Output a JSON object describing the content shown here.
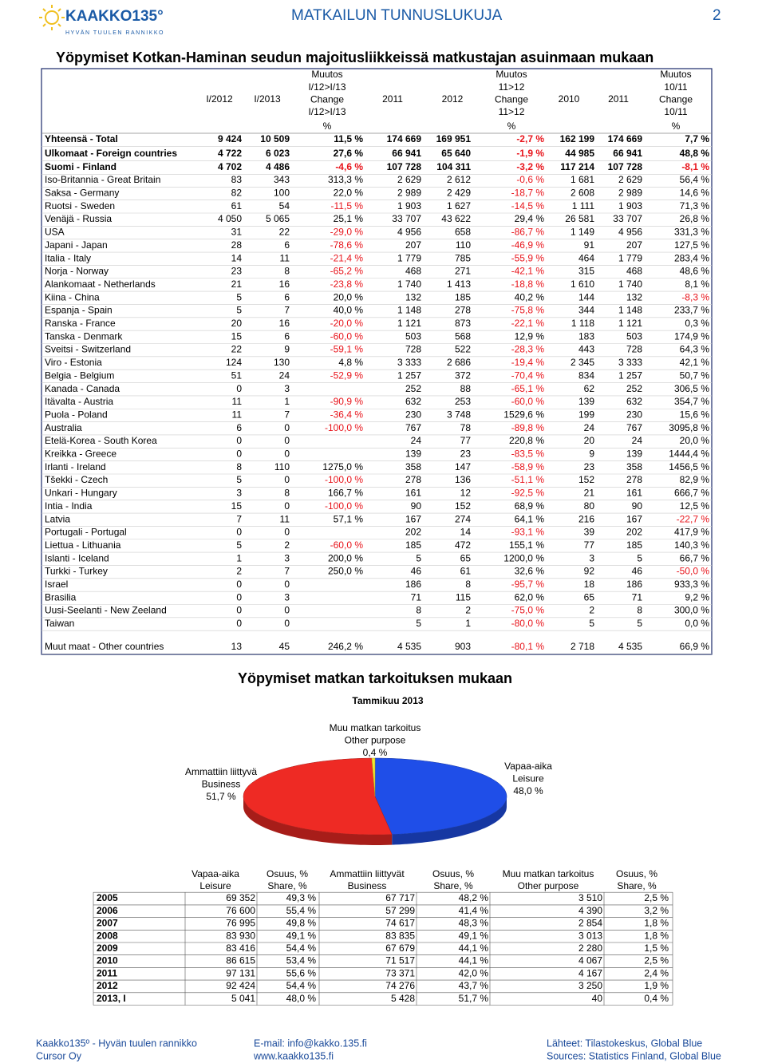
{
  "header": {
    "logo": "KAAKKO135°",
    "tagline": "HYVÄN TUULEN RANNIKKO",
    "title": "MATKAILUN TUNNUSLUKUJA",
    "page": "2"
  },
  "table": {
    "title": "Yöpymiset Kotkan-Haminan seudun majoitusliikkeissä matkustajan asuinmaan mukaan",
    "columns": [
      {
        "lines": [
          "I/2012"
        ]
      },
      {
        "lines": [
          "I/2013"
        ]
      },
      {
        "lines": [
          "Muutos",
          "I/12>I/13",
          "Change",
          "I/12>I/13"
        ],
        "unit": "%"
      },
      {
        "lines": [
          "2011"
        ]
      },
      {
        "lines": [
          "2012"
        ]
      },
      {
        "lines": [
          "Muutos",
          "11>12",
          "Change",
          "11>12"
        ],
        "unit": "%"
      },
      {
        "lines": [
          "2010"
        ]
      },
      {
        "lines": [
          "2011"
        ]
      },
      {
        "lines": [
          "Muutos",
          "10/11",
          "Change",
          "10/11"
        ],
        "unit": "%"
      }
    ],
    "rows": [
      {
        "name": "Yhteensä - Total",
        "bold": true,
        "cells": [
          "9 424",
          "10 509",
          "11,5 %",
          "174 669",
          "169 951",
          "-2,7 %",
          "162 199",
          "174 669",
          "7,7 %"
        ]
      },
      {
        "name": "Ulkomaat - Foreign countries",
        "bold": true,
        "cells": [
          "4 722",
          "6 023",
          "27,6 %",
          "66 941",
          "65 640",
          "-1,9 %",
          "44 985",
          "66 941",
          "48,8 %"
        ]
      },
      {
        "name": "Suomi - Finland",
        "bold": true,
        "cells": [
          "4 702",
          "4 486",
          "-4,6 %",
          "107 728",
          "104 311",
          "-3,2 %",
          "117 214",
          "107 728",
          "-8,1 %"
        ]
      },
      {
        "name": "Iso-Britannia - Great Britain",
        "cells": [
          "83",
          "343",
          "313,3 %",
          "2 629",
          "2 612",
          "-0,6 %",
          "1 681",
          "2 629",
          "56,4 %"
        ]
      },
      {
        "name": "Saksa - Germany",
        "cells": [
          "82",
          "100",
          "22,0 %",
          "2 989",
          "2 429",
          "-18,7 %",
          "2 608",
          "2 989",
          "14,6 %"
        ]
      },
      {
        "name": "Ruotsi - Sweden",
        "cells": [
          "61",
          "54",
          "-11,5 %",
          "1 903",
          "1 627",
          "-14,5 %",
          "1 111",
          "1 903",
          "71,3 %"
        ]
      },
      {
        "name": "Venäjä - Russia",
        "cells": [
          "4 050",
          "5 065",
          "25,1 %",
          "33 707",
          "43 622",
          "29,4 %",
          "26 581",
          "33 707",
          "26,8 %"
        ]
      },
      {
        "name": "USA",
        "cells": [
          "31",
          "22",
          "-29,0 %",
          "4 956",
          "658",
          "-86,7 %",
          "1 149",
          "4 956",
          "331,3 %"
        ]
      },
      {
        "name": "Japani - Japan",
        "cells": [
          "28",
          "6",
          "-78,6 %",
          "207",
          "110",
          "-46,9 %",
          "91",
          "207",
          "127,5 %"
        ]
      },
      {
        "name": "Italia - Italy",
        "cells": [
          "14",
          "11",
          "-21,4 %",
          "1 779",
          "785",
          "-55,9 %",
          "464",
          "1 779",
          "283,4 %"
        ]
      },
      {
        "name": "Norja - Norway",
        "cells": [
          "23",
          "8",
          "-65,2 %",
          "468",
          "271",
          "-42,1 %",
          "315",
          "468",
          "48,6 %"
        ]
      },
      {
        "name": "Alankomaat - Netherlands",
        "cells": [
          "21",
          "16",
          "-23,8 %",
          "1 740",
          "1 413",
          "-18,8 %",
          "1 610",
          "1 740",
          "8,1 %"
        ]
      },
      {
        "name": "Kiina - China",
        "cells": [
          "5",
          "6",
          "20,0 %",
          "132",
          "185",
          "40,2 %",
          "144",
          "132",
          "-8,3 %"
        ]
      },
      {
        "name": "Espanja - Spain",
        "cells": [
          "5",
          "7",
          "40,0 %",
          "1 148",
          "278",
          "-75,8 %",
          "344",
          "1 148",
          "233,7 %"
        ]
      },
      {
        "name": "Ranska - France",
        "cells": [
          "20",
          "16",
          "-20,0 %",
          "1 121",
          "873",
          "-22,1 %",
          "1 118",
          "1 121",
          "0,3 %"
        ]
      },
      {
        "name": "Tanska - Denmark",
        "cells": [
          "15",
          "6",
          "-60,0 %",
          "503",
          "568",
          "12,9 %",
          "183",
          "503",
          "174,9 %"
        ]
      },
      {
        "name": "Sveitsi - Switzerland",
        "cells": [
          "22",
          "9",
          "-59,1 %",
          "728",
          "522",
          "-28,3 %",
          "443",
          "728",
          "64,3 %"
        ]
      },
      {
        "name": "Viro - Estonia",
        "cells": [
          "124",
          "130",
          "4,8 %",
          "3 333",
          "2 686",
          "-19,4 %",
          "2 345",
          "3 333",
          "42,1 %"
        ]
      },
      {
        "name": "Belgia - Belgium",
        "cells": [
          "51",
          "24",
          "-52,9 %",
          "1 257",
          "372",
          "-70,4 %",
          "834",
          "1 257",
          "50,7 %"
        ]
      },
      {
        "name": "Kanada - Canada",
        "cells": [
          "0",
          "3",
          null,
          "252",
          "88",
          "-65,1 %",
          "62",
          "252",
          "306,5 %"
        ]
      },
      {
        "name": "Itävalta - Austria",
        "cells": [
          "11",
          "1",
          "-90,9 %",
          "632",
          "253",
          "-60,0 %",
          "139",
          "632",
          "354,7 %"
        ]
      },
      {
        "name": "Puola - Poland",
        "cells": [
          "11",
          "7",
          "-36,4 %",
          "230",
          "3 748",
          "1529,6 %",
          "199",
          "230",
          "15,6 %"
        ]
      },
      {
        "name": "Australia",
        "cells": [
          "6",
          "0",
          "-100,0 %",
          "767",
          "78",
          "-89,8 %",
          "24",
          "767",
          "3095,8 %"
        ]
      },
      {
        "name": "Etelä-Korea - South Korea",
        "cells": [
          "0",
          "0",
          null,
          "24",
          "77",
          "220,8 %",
          "20",
          "24",
          "20,0 %"
        ]
      },
      {
        "name": "Kreikka - Greece",
        "cells": [
          "0",
          "0",
          null,
          "139",
          "23",
          "-83,5 %",
          "9",
          "139",
          "1444,4 %"
        ]
      },
      {
        "name": "Irlanti - Ireland",
        "cells": [
          "8",
          "110",
          "1275,0 %",
          "358",
          "147",
          "-58,9 %",
          "23",
          "358",
          "1456,5 %"
        ]
      },
      {
        "name": "Tšekki - Czech",
        "cells": [
          "5",
          "0",
          "-100,0 %",
          "278",
          "136",
          "-51,1 %",
          "152",
          "278",
          "82,9 %"
        ]
      },
      {
        "name": "Unkari - Hungary",
        "cells": [
          "3",
          "8",
          "166,7 %",
          "161",
          "12",
          "-92,5 %",
          "21",
          "161",
          "666,7 %"
        ]
      },
      {
        "name": "Intia - India",
        "cells": [
          "15",
          "0",
          "-100,0 %",
          "90",
          "152",
          "68,9 %",
          "80",
          "90",
          "12,5 %"
        ]
      },
      {
        "name": "Latvia",
        "cells": [
          "7",
          "11",
          "57,1 %",
          "167",
          "274",
          "64,1 %",
          "216",
          "167",
          "-22,7 %"
        ]
      },
      {
        "name": "Portugali - Portugal",
        "cells": [
          "0",
          "0",
          null,
          "202",
          "14",
          "-93,1 %",
          "39",
          "202",
          "417,9 %"
        ]
      },
      {
        "name": "Liettua - Lithuania",
        "cells": [
          "5",
          "2",
          "-60,0 %",
          "185",
          "472",
          "155,1 %",
          "77",
          "185",
          "140,3 %"
        ]
      },
      {
        "name": "Islanti - Iceland",
        "cells": [
          "1",
          "3",
          "200,0 %",
          "5",
          "65",
          "1200,0 %",
          "3",
          "5",
          "66,7 %"
        ]
      },
      {
        "name": "Turkki - Turkey",
        "cells": [
          "2",
          "7",
          "250,0 %",
          "46",
          "61",
          "32,6 %",
          "92",
          "46",
          "-50,0 %"
        ]
      },
      {
        "name": "Israel",
        "cells": [
          "0",
          "0",
          null,
          "186",
          "8",
          "-95,7 %",
          "18",
          "186",
          "933,3 %"
        ]
      },
      {
        "name": "Brasilia",
        "cells": [
          "0",
          "3",
          null,
          "71",
          "115",
          "62,0 %",
          "65",
          "71",
          "9,2 %"
        ]
      },
      {
        "name": "Uusi-Seelanti - New Zeeland",
        "cells": [
          "0",
          "0",
          null,
          "8",
          "2",
          "-75,0 %",
          "2",
          "8",
          "300,0 %"
        ]
      },
      {
        "name": "Taiwan",
        "cells": [
          "0",
          "0",
          null,
          "5",
          "1",
          "-80,0 %",
          "5",
          "5",
          "0,0 %"
        ]
      },
      {
        "name": "Muut maat - Other countries",
        "cells": [
          "13",
          "45",
          "246,2 %",
          "4 535",
          "903",
          "-80,1 %",
          "2 718",
          "4 535",
          "66,9 %"
        ]
      }
    ]
  },
  "chart_data": {
    "type": "pie",
    "title": "Yöpymiset matkan tarkoituksen mukaan",
    "subtitle": "Tammikuu 2013",
    "category_lines": [
      [
        "Vapaa-aika",
        "Leisure"
      ],
      [
        "Ammattiin liittyvä",
        "Business"
      ],
      [
        "Muu matkan tarkoitus",
        "Other purpose"
      ]
    ],
    "values": [
      48.0,
      51.7,
      0.4
    ],
    "value_labels": [
      "48,0 %",
      "51,7 %",
      "0,4 %"
    ],
    "colors": [
      "#1f4ee8",
      "#ee2a24",
      "#f0e832"
    ]
  },
  "history": {
    "columns": [
      [
        "Vapaa-aika",
        "Leisure"
      ],
      [
        "Osuus, %",
        "Share, %"
      ],
      [
        "Ammattiin liittyvät",
        "Business"
      ],
      [
        "Osuus, %",
        "Share, %"
      ],
      [
        "Muu matkan tarkoitus",
        "Other purpose"
      ],
      [
        "Osuus, %",
        "Share, %"
      ]
    ],
    "rows": [
      {
        "year": "2005",
        "cells": [
          "69 352",
          "49,3 %",
          "67 717",
          "48,2 %",
          "3 510",
          "2,5 %"
        ]
      },
      {
        "year": "2006",
        "cells": [
          "76 600",
          "55,4 %",
          "57 299",
          "41,4 %",
          "4 390",
          "3,2 %"
        ]
      },
      {
        "year": "2007",
        "cells": [
          "76 995",
          "49,8 %",
          "74 617",
          "48,3 %",
          "2 854",
          "1,8 %"
        ]
      },
      {
        "year": "2008",
        "cells": [
          "83 930",
          "49,1 %",
          "83 835",
          "49,1 %",
          "3 013",
          "1,8 %"
        ]
      },
      {
        "year": "2009",
        "cells": [
          "83 416",
          "54,4 %",
          "67 679",
          "44,1 %",
          "2 280",
          "1,5 %"
        ]
      },
      {
        "year": "2010",
        "cells": [
          "86 615",
          "53,4 %",
          "71 517",
          "44,1 %",
          "4 067",
          "2,5 %"
        ]
      },
      {
        "year": "2011",
        "cells": [
          "97 131",
          "55,6 %",
          "73 371",
          "42,0 %",
          "4 167",
          "2,4 %"
        ]
      },
      {
        "year": "2012",
        "cells": [
          "92 424",
          "54,4 %",
          "74 276",
          "43,7 %",
          "3 250",
          "1,9 %"
        ]
      },
      {
        "year": "2013, I",
        "cells": [
          "5 041",
          "48,0 %",
          "5 428",
          "51,7 %",
          "40",
          "0,4 %"
        ]
      }
    ]
  },
  "footer": {
    "left": [
      "Kaakko135º - Hyvän tuulen rannikko",
      "Cursor Oy"
    ],
    "middle": [
      "E-mail: info@kakko.135.fi",
      "www.kaakko135.fi"
    ],
    "right": [
      "Lähteet: Tilastokeskus, Global Blue",
      "Sources: Statistics Finland, Global Blue"
    ]
  }
}
